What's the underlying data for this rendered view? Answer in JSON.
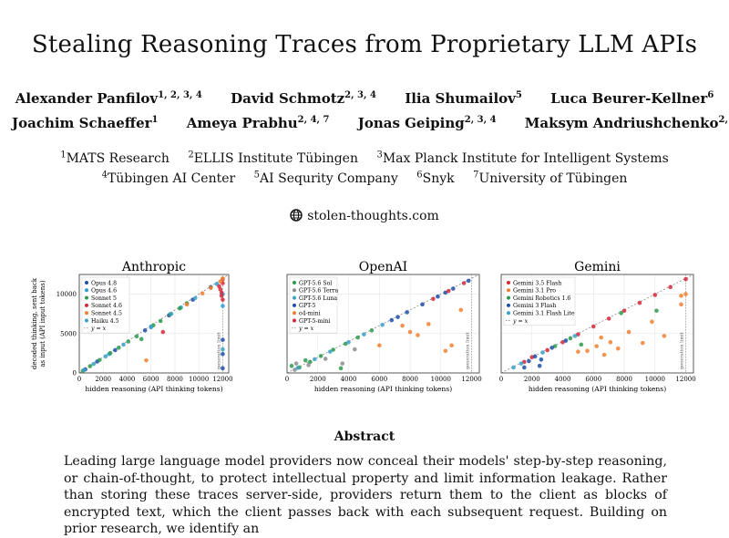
{
  "title": "Stealing Reasoning Traces from Proprietary LLM APIs",
  "authors_row1": [
    {
      "name": "Alexander Panfilov",
      "sup": "1, 2, 3, 4"
    },
    {
      "name": "David Schmotz",
      "sup": "2, 3, 4"
    },
    {
      "name": "Ilia Shumailov",
      "sup": "5"
    },
    {
      "name": "Luca Beurer-Kellner",
      "sup": "6"
    }
  ],
  "authors_row2": [
    {
      "name": "Joachim Schaeffer",
      "sup": "1"
    },
    {
      "name": "Ameya Prabhu",
      "sup": "2, 4, 7"
    },
    {
      "name": "Jonas Geiping",
      "sup": "2, 3, 4"
    },
    {
      "name": "Maksym Andriushchenko",
      "sup": "2, 3, 4"
    }
  ],
  "affil_row1": [
    {
      "sup": "1",
      "name": "MATS Research"
    },
    {
      "sup": "2",
      "name": "ELLIS Institute Tübingen"
    },
    {
      "sup": "3",
      "name": "Max Planck Institute for Intelligent Systems"
    }
  ],
  "affil_row2": [
    {
      "sup": "4",
      "name": "Tübingen AI Center"
    },
    {
      "sup": "5",
      "name": "AI Sequrity Company"
    },
    {
      "sup": "6",
      "name": "Snyk"
    },
    {
      "sup": "7",
      "name": "University of Tübingen"
    }
  ],
  "website": "stolen-thoughts.com",
  "abstract_heading": "Abstract",
  "abstract_text": "Leading large language model providers now conceal their models' step-by-step reasoning, or chain-of-thought, to protect intellectual property and limit information leakage. Rather than storing these traces server-side, providers return them to the client as blocks of encrypted text, which the client passes back with each subsequent request. Building on prior research, we identify an",
  "chart_data": [
    {
      "type": "scatter",
      "title": "Anthropic",
      "xlabel": "hidden reasoning (API thinking tokens)",
      "ylabel": "decoded thinking, sent back as input (API input tokens)",
      "xlim": [
        0,
        12500
      ],
      "ylim": [
        0,
        12500
      ],
      "xticks": [
        0,
        2000,
        4000,
        6000,
        8000,
        10000,
        12000
      ],
      "yticks": [
        0,
        5000,
        10000
      ],
      "limit_label": "generation limit",
      "legend_position": "top-left",
      "series": [
        {
          "name": "Opus 4.8",
          "color": "#1f4fa8",
          "points": [
            [
              500,
              450
            ],
            [
              1500,
              1450
            ],
            [
              3000,
              2900
            ],
            [
              5500,
              5400
            ],
            [
              7500,
              7300
            ],
            [
              9500,
              9300
            ],
            [
              11000,
              10900
            ],
            [
              12000,
              2400
            ],
            [
              12000,
              4200
            ],
            [
              12000,
              600
            ]
          ]
        },
        {
          "name": "Opus 4.6",
          "color": "#2a9fd6",
          "points": [
            [
              2500,
              2400
            ],
            [
              6000,
              5800
            ],
            [
              8500,
              8300
            ],
            [
              11500,
              11300
            ],
            [
              12000,
              10000
            ],
            [
              12000,
              8500
            ]
          ]
        },
        {
          "name": "Sonnet 5",
          "color": "#2e9a4e",
          "points": [
            [
              300,
              280
            ],
            [
              900,
              860
            ],
            [
              1700,
              1650
            ],
            [
              2600,
              2520
            ],
            [
              3300,
              3200
            ],
            [
              4100,
              4000
            ],
            [
              4800,
              4650
            ],
            [
              5200,
              4300
            ],
            [
              6200,
              6050
            ],
            [
              6800,
              6600
            ],
            [
              7600,
              7450
            ],
            [
              8400,
              8200
            ],
            [
              9000,
              8850
            ]
          ]
        },
        {
          "name": "Sonnet 4.6",
          "color": "#d62839",
          "points": [
            [
              11800,
              10600
            ],
            [
              12000,
              11900
            ],
            [
              11900,
              9800
            ],
            [
              12000,
              9300
            ],
            [
              11700,
              11000
            ],
            [
              11900,
              10200
            ],
            [
              7000,
              5200
            ],
            [
              12000,
              11400
            ]
          ]
        },
        {
          "name": "Sonnet 4.5",
          "color": "#f08030",
          "points": [
            [
              5600,
              1600
            ],
            [
              10300,
              10100
            ],
            [
              11000,
              10800
            ],
            [
              11800,
              11600
            ],
            [
              12000,
              12000
            ],
            [
              9000,
              8700
            ]
          ]
        },
        {
          "name": "Haiku 4.5",
          "color": "#3aa1c7",
          "points": [
            [
              400,
              380
            ],
            [
              1200,
              1150
            ],
            [
              2200,
              2100
            ],
            [
              3700,
              3600
            ],
            [
              6000,
              5900
            ],
            [
              7700,
              7500
            ],
            [
              9700,
              9500
            ],
            [
              12000,
              3000
            ]
          ]
        }
      ]
    },
    {
      "type": "scatter",
      "title": "OpenAI",
      "xlabel": "hidden reasoning (API thinking tokens)",
      "xlim": [
        0,
        12500
      ],
      "ylim": [
        0,
        12500
      ],
      "xticks": [
        0,
        2000,
        4000,
        6000,
        8000,
        10000,
        12000
      ],
      "limit_label": "generation limit",
      "legend_position": "top-left",
      "series": [
        {
          "name": "GPT-5.6 Sol",
          "color": "#2e9a4e",
          "points": [
            [
              300,
              900
            ],
            [
              800,
              700
            ],
            [
              1500,
              1400
            ],
            [
              2200,
              2150
            ],
            [
              3000,
              2950
            ],
            [
              3800,
              3700
            ],
            [
              4600,
              4500
            ],
            [
              5500,
              5400
            ],
            [
              3500,
              600
            ],
            [
              1200,
              1600
            ]
          ]
        },
        {
          "name": "GPT-5.6 Terra",
          "color": "#8c8c8c",
          "points": [
            [
              500,
              400
            ],
            [
              1400,
              1000
            ],
            [
              2500,
              1800
            ],
            [
              3600,
              1200
            ],
            [
              4400,
              3000
            ],
            [
              600,
              1200
            ]
          ]
        },
        {
          "name": "GPT-5.6 Luna",
          "color": "#3aa1c7",
          "points": [
            [
              700,
              650
            ],
            [
              1800,
              1750
            ],
            [
              2800,
              2700
            ],
            [
              4000,
              3900
            ],
            [
              5000,
              4900
            ],
            [
              6200,
              6100
            ]
          ]
        },
        {
          "name": "GPT-5",
          "color": "#1f4fa8",
          "points": [
            [
              6800,
              6700
            ],
            [
              7800,
              7700
            ],
            [
              8800,
              8700
            ],
            [
              9800,
              9700
            ],
            [
              10800,
              10700
            ],
            [
              11800,
              11700
            ],
            [
              7200,
              7100
            ],
            [
              10300,
              10200
            ]
          ]
        },
        {
          "name": "o4-mini",
          "color": "#f08030",
          "points": [
            [
              6000,
              3500
            ],
            [
              8500,
              4800
            ],
            [
              9200,
              6200
            ],
            [
              10300,
              2800
            ],
            [
              10700,
              3500
            ],
            [
              11300,
              8000
            ],
            [
              7500,
              6000
            ],
            [
              8000,
              5200
            ]
          ]
        },
        {
          "name": "GPT-5-mini",
          "color": "#d62839",
          "points": [
            [
              10500,
              10400
            ],
            [
              11500,
              11400
            ],
            [
              9500,
              9400
            ]
          ]
        }
      ]
    },
    {
      "type": "scatter",
      "title": "Gemini",
      "xlabel": "hidden reasoning (API thinking tokens)",
      "xlim": [
        0,
        12500
      ],
      "ylim": [
        0,
        12500
      ],
      "xticks": [
        0,
        2000,
        4000,
        6000,
        8000,
        10000,
        12000
      ],
      "limit_label": "generation limit",
      "legend_position": "top-left",
      "series": [
        {
          "name": "Gemini 3.5 Flash",
          "color": "#d62839",
          "points": [
            [
              2000,
              2000
            ],
            [
              3000,
              2900
            ],
            [
              4000,
              3900
            ],
            [
              5000,
              4900
            ],
            [
              6000,
              5900
            ],
            [
              7000,
              6900
            ],
            [
              8000,
              7900
            ],
            [
              9000,
              8900
            ],
            [
              10000,
              9900
            ],
            [
              11000,
              10900
            ],
            [
              12000,
              11900
            ],
            [
              1500,
              1400
            ]
          ]
        },
        {
          "name": "Gemini 3.1 Pro",
          "color": "#f08030",
          "points": [
            [
              5000,
              2700
            ],
            [
              5600,
              2800
            ],
            [
              6200,
              3400
            ],
            [
              6500,
              4500
            ],
            [
              7100,
              3900
            ],
            [
              7600,
              3100
            ],
            [
              8300,
              5200
            ],
            [
              9200,
              3800
            ],
            [
              9800,
              6500
            ],
            [
              10600,
              4700
            ],
            [
              11700,
              9800
            ],
            [
              12000,
              10000
            ],
            [
              11700,
              8700
            ],
            [
              6700,
              2300
            ]
          ]
        },
        {
          "name": "Gemini Robotics 1.6",
          "color": "#2e9a4e",
          "points": [
            [
              3500,
              3400
            ],
            [
              4500,
              4400
            ],
            [
              5200,
              3600
            ],
            [
              7800,
              7600
            ],
            [
              10100,
              7900
            ]
          ]
        },
        {
          "name": "Gemini 3 Flash",
          "color": "#1f4fa8",
          "points": [
            [
              1500,
              700
            ],
            [
              2500,
              900
            ],
            [
              2200,
              2100
            ],
            [
              3300,
              3200
            ],
            [
              1800,
              1500
            ],
            [
              4200,
              4100
            ],
            [
              2600,
              1700
            ]
          ]
        },
        {
          "name": "Gemini 3.1 Flash Lite",
          "color": "#3aa1c7",
          "points": [
            [
              800,
              700
            ],
            [
              1300,
              1200
            ],
            [
              2700,
              2600
            ],
            [
              4800,
              4700
            ]
          ]
        }
      ]
    }
  ]
}
